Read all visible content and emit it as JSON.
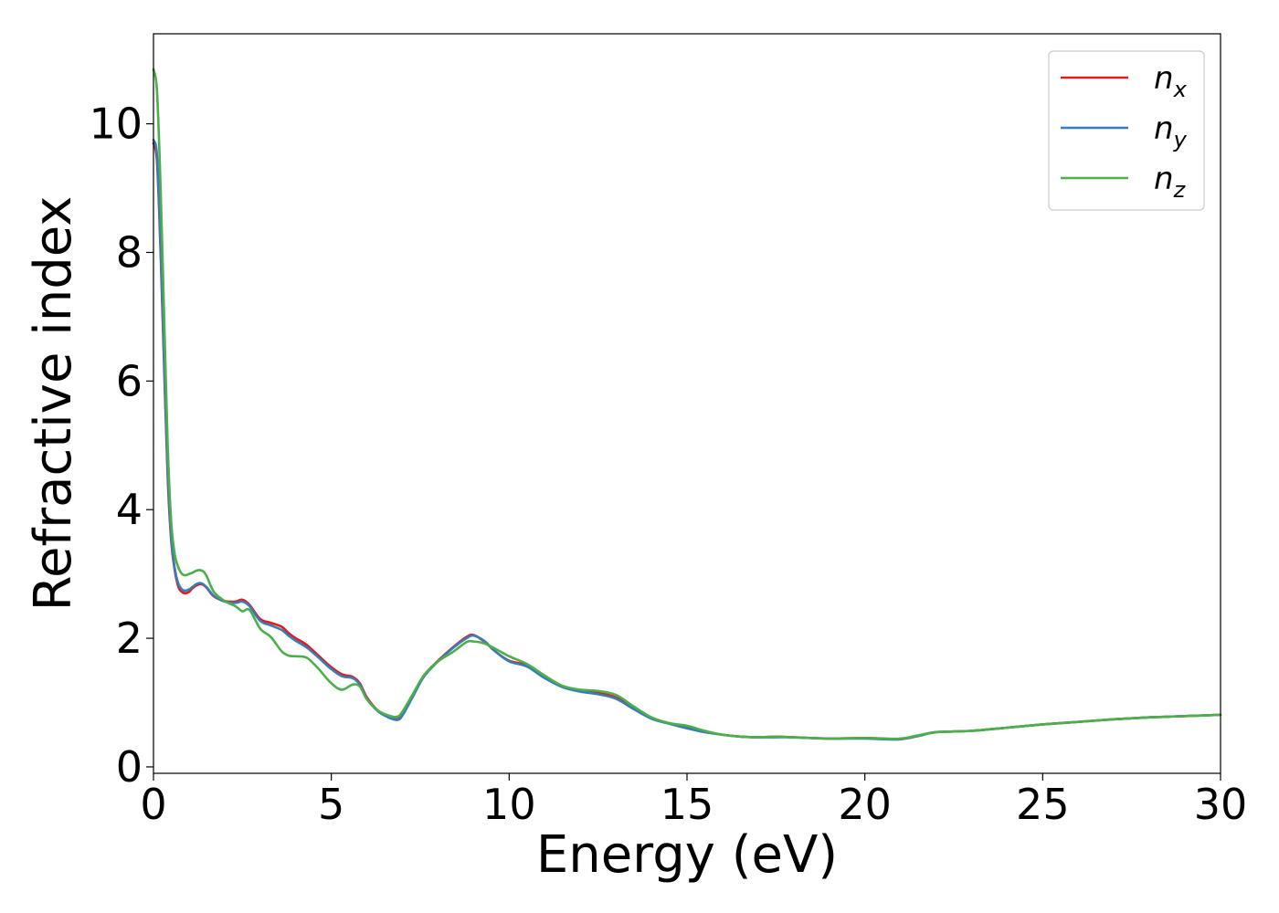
{
  "chart_data": {
    "type": "line",
    "xlabel": "Energy (eV)",
    "ylabel": "Refractive index",
    "xlim": [
      0,
      30
    ],
    "ylim": [
      -0.1,
      11.4
    ],
    "xticks": [
      0,
      5,
      10,
      15,
      20,
      25,
      30
    ],
    "yticks": [
      0,
      2,
      4,
      6,
      8,
      10
    ],
    "grid": false,
    "legend_position": "top-right",
    "series": [
      {
        "name": "n",
        "subscript": "x",
        "color": "#e41a1c",
        "x": [
          0,
          0.1,
          0.2,
          0.3,
          0.4,
          0.5,
          0.6,
          0.7,
          0.8,
          0.9,
          1.0,
          1.1,
          1.2,
          1.3,
          1.4,
          1.5,
          1.7,
          2.0,
          2.3,
          2.5,
          2.7,
          3.0,
          3.3,
          3.6,
          3.8,
          4.0,
          4.3,
          4.6,
          5.0,
          5.3,
          5.6,
          5.8,
          6.0,
          6.3,
          6.6,
          6.85,
          7.0,
          7.3,
          7.6,
          8.0,
          8.4,
          8.8,
          9.0,
          9.3,
          9.6,
          10.0,
          10.5,
          11.0,
          11.5,
          12.0,
          12.5,
          13.0,
          13.5,
          14.0,
          14.5,
          15.0,
          15.5,
          16.0,
          16.5,
          17.0,
          17.5,
          18.0,
          19.0,
          20.0,
          20.5,
          21.0,
          21.5,
          22.0,
          23.0,
          24.0,
          25.0,
          26.0,
          27.0,
          28.0,
          29.0,
          30.0
        ],
        "y": [
          9.7,
          9.4,
          8.0,
          6.2,
          4.5,
          3.5,
          3.05,
          2.8,
          2.72,
          2.7,
          2.72,
          2.78,
          2.82,
          2.84,
          2.83,
          2.78,
          2.65,
          2.58,
          2.57,
          2.6,
          2.52,
          2.3,
          2.24,
          2.18,
          2.08,
          2.0,
          1.9,
          1.75,
          1.55,
          1.44,
          1.4,
          1.3,
          1.08,
          0.88,
          0.78,
          0.74,
          0.82,
          1.12,
          1.42,
          1.65,
          1.85,
          2.02,
          2.05,
          1.95,
          1.8,
          1.65,
          1.58,
          1.4,
          1.25,
          1.18,
          1.15,
          1.08,
          0.92,
          0.76,
          0.68,
          0.62,
          0.55,
          0.5,
          0.47,
          0.46,
          0.47,
          0.46,
          0.44,
          0.45,
          0.44,
          0.43,
          0.48,
          0.54,
          0.56,
          0.61,
          0.66,
          0.7,
          0.74,
          0.77,
          0.79,
          0.81
        ]
      },
      {
        "name": "n",
        "subscript": "y",
        "color": "#377eb8",
        "x": [
          0,
          0.1,
          0.2,
          0.3,
          0.4,
          0.5,
          0.6,
          0.7,
          0.8,
          0.9,
          1.0,
          1.1,
          1.2,
          1.3,
          1.4,
          1.5,
          1.7,
          2.0,
          2.3,
          2.5,
          2.7,
          3.0,
          3.3,
          3.6,
          3.8,
          4.0,
          4.3,
          4.6,
          5.0,
          5.3,
          5.6,
          5.8,
          6.0,
          6.3,
          6.6,
          6.85,
          7.0,
          7.3,
          7.6,
          8.0,
          8.4,
          8.8,
          9.0,
          9.3,
          9.6,
          10.0,
          10.5,
          11.0,
          11.5,
          12.0,
          12.5,
          13.0,
          13.5,
          14.0,
          14.5,
          15.0,
          15.5,
          16.0,
          16.5,
          17.0,
          17.5,
          18.0,
          19.0,
          20.0,
          20.5,
          21.0,
          21.5,
          22.0,
          23.0,
          24.0,
          25.0,
          26.0,
          27.0,
          28.0,
          29.0,
          30.0
        ],
        "y": [
          9.75,
          9.5,
          8.1,
          6.3,
          4.6,
          3.55,
          3.08,
          2.85,
          2.76,
          2.74,
          2.76,
          2.8,
          2.84,
          2.86,
          2.84,
          2.79,
          2.66,
          2.57,
          2.55,
          2.57,
          2.5,
          2.27,
          2.2,
          2.13,
          2.04,
          1.96,
          1.86,
          1.72,
          1.52,
          1.41,
          1.38,
          1.28,
          1.06,
          0.87,
          0.77,
          0.73,
          0.8,
          1.1,
          1.4,
          1.64,
          1.84,
          2.0,
          2.04,
          1.96,
          1.8,
          1.64,
          1.56,
          1.38,
          1.24,
          1.17,
          1.13,
          1.06,
          0.9,
          0.75,
          0.67,
          0.6,
          0.54,
          0.5,
          0.47,
          0.46,
          0.46,
          0.46,
          0.44,
          0.44,
          0.43,
          0.43,
          0.48,
          0.54,
          0.56,
          0.61,
          0.66,
          0.7,
          0.74,
          0.77,
          0.79,
          0.81
        ]
      },
      {
        "name": "n",
        "subscript": "z",
        "color": "#4daf4a",
        "x": [
          0,
          0.1,
          0.2,
          0.3,
          0.4,
          0.5,
          0.6,
          0.7,
          0.8,
          0.9,
          1.0,
          1.1,
          1.2,
          1.3,
          1.4,
          1.5,
          1.7,
          2.0,
          2.3,
          2.5,
          2.7,
          3.0,
          3.3,
          3.6,
          3.8,
          4.0,
          4.3,
          4.6,
          5.0,
          5.3,
          5.6,
          5.8,
          6.0,
          6.3,
          6.6,
          6.85,
          7.0,
          7.3,
          7.6,
          8.0,
          8.4,
          8.8,
          9.0,
          9.3,
          9.6,
          10.0,
          10.5,
          11.0,
          11.5,
          12.0,
          12.5,
          13.0,
          13.5,
          14.0,
          14.5,
          15.0,
          15.5,
          16.0,
          16.5,
          17.0,
          17.5,
          18.0,
          19.0,
          20.0,
          20.5,
          21.0,
          21.5,
          22.0,
          23.0,
          24.0,
          25.0,
          26.0,
          27.0,
          28.0,
          29.0,
          30.0
        ],
        "y": [
          10.85,
          10.5,
          9.0,
          7.0,
          5.0,
          3.8,
          3.3,
          3.1,
          3.0,
          2.98,
          3.0,
          3.02,
          3.05,
          3.06,
          3.04,
          2.96,
          2.72,
          2.58,
          2.5,
          2.42,
          2.44,
          2.15,
          2.02,
          1.8,
          1.73,
          1.72,
          1.7,
          1.55,
          1.3,
          1.2,
          1.28,
          1.25,
          1.05,
          0.88,
          0.8,
          0.78,
          0.86,
          1.14,
          1.42,
          1.64,
          1.78,
          1.94,
          1.95,
          1.92,
          1.84,
          1.72,
          1.6,
          1.42,
          1.26,
          1.2,
          1.18,
          1.12,
          0.94,
          0.77,
          0.68,
          0.64,
          0.56,
          0.5,
          0.47,
          0.46,
          0.47,
          0.46,
          0.44,
          0.45,
          0.44,
          0.44,
          0.49,
          0.54,
          0.56,
          0.61,
          0.66,
          0.7,
          0.74,
          0.77,
          0.79,
          0.81
        ]
      }
    ]
  }
}
